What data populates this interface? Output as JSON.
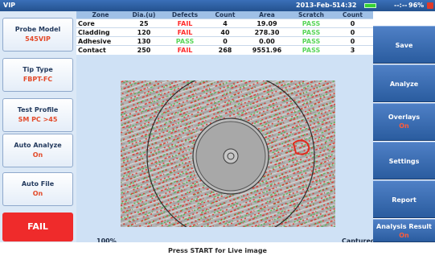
{
  "titlebar": {
    "title": "VIP",
    "date": "2013-Feb-5",
    "time": "14:32",
    "signal": "--:--",
    "battery_percent": "96%"
  },
  "left_panel": {
    "probe_model": {
      "label": "Probe Model",
      "value": "545VIP"
    },
    "tip_type": {
      "label": "Tip Type",
      "value": "FBPT-FC"
    },
    "test_profile": {
      "label": "Test Profile",
      "value": "SM PC >45"
    },
    "auto_analyze": {
      "label": "Auto Analyze",
      "value": "On"
    },
    "auto_file": {
      "label": "Auto File",
      "value": "On"
    },
    "result": "FAIL"
  },
  "table": {
    "headers": [
      "Zone",
      "Dia.(u)",
      "Defects",
      "Count",
      "Area",
      "Scratch",
      "Count"
    ],
    "rows": [
      {
        "zone": "Core",
        "dia": "25",
        "defects": "FAIL",
        "count": "4",
        "area": "19.09",
        "scratch": "PASS",
        "scratch_count": "0"
      },
      {
        "zone": "Cladding",
        "dia": "120",
        "defects": "FAIL",
        "count": "40",
        "area": "278.30",
        "scratch": "PASS",
        "scratch_count": "0"
      },
      {
        "zone": "Adhesive",
        "dia": "130",
        "defects": "PASS",
        "count": "0",
        "area": "0.00",
        "scratch": "PASS",
        "scratch_count": "0"
      },
      {
        "zone": "Contact",
        "dia": "250",
        "defects": "FAIL",
        "count": "268",
        "area": "9551.96",
        "scratch": "PASS",
        "scratch_count": "3"
      }
    ]
  },
  "image": {
    "zoom": "100%",
    "capture_status": "Captured"
  },
  "right_panel": {
    "save": "Save",
    "analyze": "Analyze",
    "overlays": {
      "label": "Overlays",
      "value": "On"
    },
    "settings": "Settings",
    "report": "Report",
    "analysis_result": {
      "label": "Analysis Result",
      "value": "On"
    }
  },
  "status": "Press START for Live image",
  "colors": {
    "fail": "#ff2d2d",
    "pass": "#5bd65b",
    "accent": "#2a5c9f"
  }
}
